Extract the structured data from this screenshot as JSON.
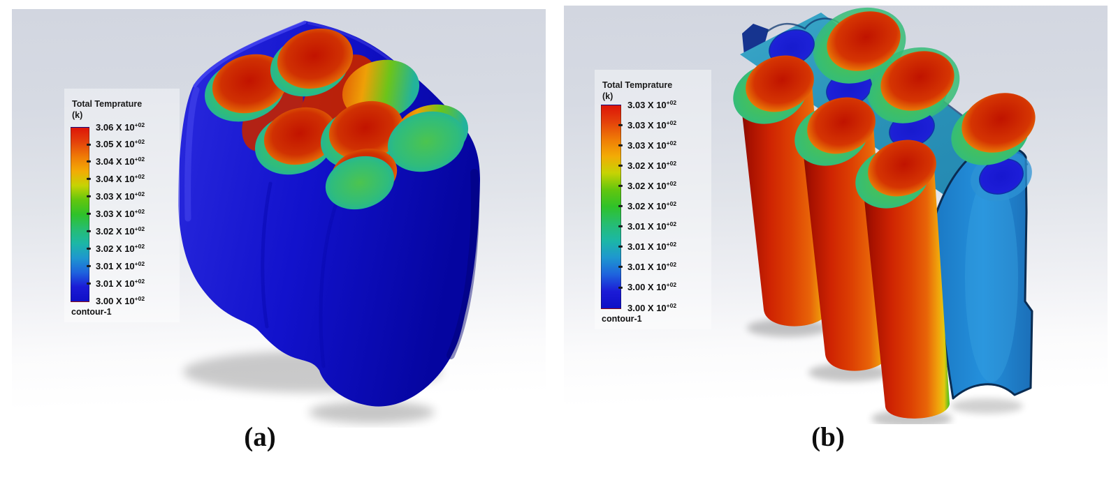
{
  "figure": {
    "caption_a": "(a)",
    "caption_b": "(b)"
  },
  "colors": {
    "viewport_bg_top": "#d3d7e0",
    "viewport_bg_bottom": "#ffffff",
    "pack_case_blue": "#1212c6",
    "hot_red": "#d33502",
    "cool_teal": "#1fb0ab",
    "top_plate_teal": "#2b93b8",
    "cut_face_blue": "#2490dc",
    "cooling_hole_blue": "#1d1dd8"
  },
  "legends": {
    "colorbar_stops": [
      "#dd1508",
      "#e4420b",
      "#ef7b06",
      "#f3ab05",
      "#c6d304",
      "#62c60e",
      "#2fc229",
      "#26bd71",
      "#1cb7a6",
      "#1e97cf",
      "#1e63dd",
      "#1b1bd6",
      "#0f0fc6"
    ],
    "a": {
      "title_line1": "Total Temprature",
      "title_line2": "(k)",
      "multiplier": "X 10",
      "exponent": "+02",
      "tick_values": [
        "3.06",
        "3.05",
        "3.04",
        "3.04",
        "3.03",
        "3.03",
        "3.02",
        "3.02",
        "3.01",
        "3.01",
        "3.00"
      ],
      "footer": "contour-1"
    },
    "b": {
      "title_line1": "Total Temprature",
      "title_line2": "(k)",
      "multiplier": "X 10",
      "exponent": "+02",
      "tick_values": [
        "3.03",
        "3.03",
        "3.03",
        "3.02",
        "3.02",
        "3.02",
        "3.01",
        "3.01",
        "3.01",
        "3.00",
        "3.00"
      ],
      "footer": "contour-1"
    }
  }
}
